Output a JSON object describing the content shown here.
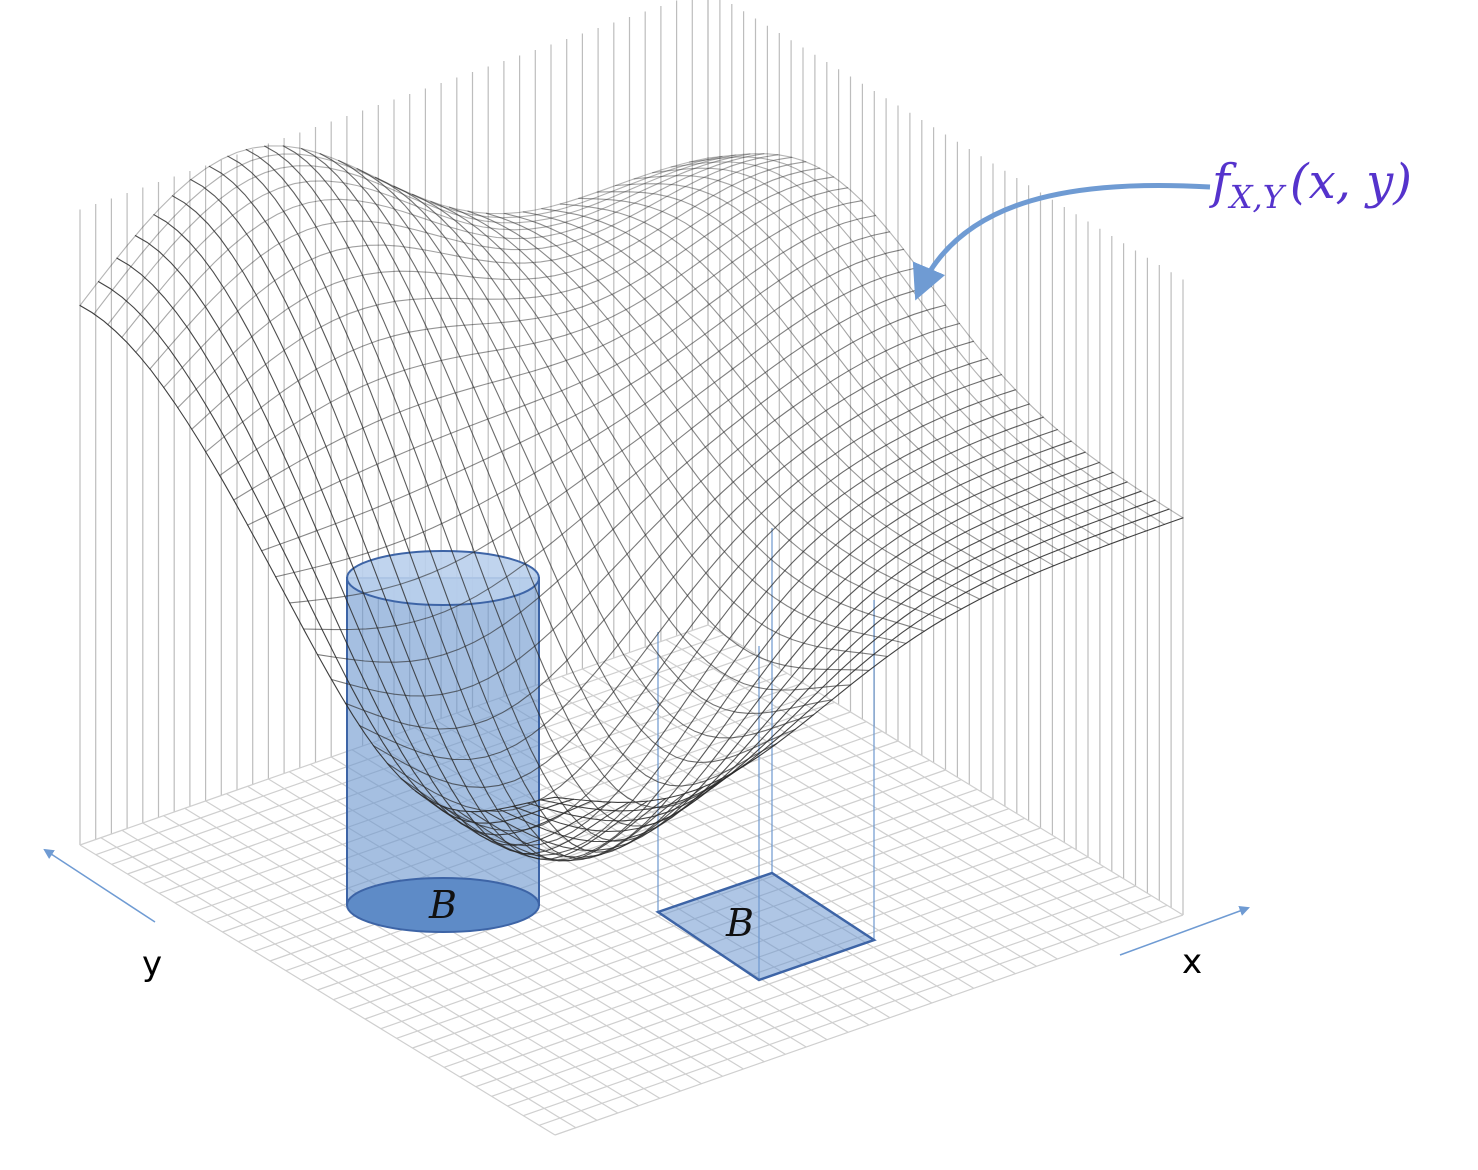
{
  "function_label": {
    "f": "f",
    "sub": "X,Y",
    "args": "(x, y)"
  },
  "axes": {
    "x": "x",
    "y": "y"
  },
  "regions": [
    {
      "label": "B",
      "shape": "disk"
    },
    {
      "label": "B",
      "shape": "square"
    }
  ],
  "colors": {
    "region_fill": "#6d98cf",
    "region_stroke": "#3d64a6",
    "arrow": "#6f9bd3",
    "function_label": "#5533cc",
    "mesh": "#2a2a2a",
    "grid": "#cfcfcf"
  }
}
